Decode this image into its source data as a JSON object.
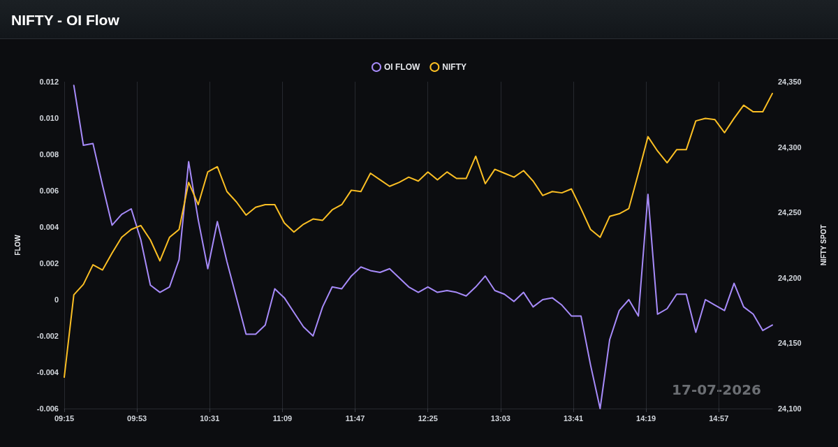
{
  "chart_data": {
    "type": "line",
    "title": "NIFTY - OI Flow",
    "ylabel": "FLOW",
    "y2label": "NIFTY SPOT",
    "x": [
      "2026-07-17T09:15",
      "2026-07-17T09:20",
      "2026-07-17T09:25",
      "2026-07-17T09:30",
      "2026-07-17T09:35",
      "2026-07-17T09:40",
      "2026-07-17T09:45",
      "2026-07-17T09:50",
      "2026-07-17T09:55",
      "2026-07-17T10:00",
      "2026-07-17T10:05",
      "2026-07-17T10:10",
      "2026-07-17T10:15",
      "2026-07-17T10:20",
      "2026-07-17T10:25",
      "2026-07-17T10:30",
      "2026-07-17T10:35",
      "2026-07-17T10:40",
      "2026-07-17T10:45",
      "2026-07-17T10:50",
      "2026-07-17T10:55",
      "2026-07-17T11:00",
      "2026-07-17T11:05",
      "2026-07-17T11:10",
      "2026-07-17T11:15",
      "2026-07-17T11:20",
      "2026-07-17T11:25",
      "2026-07-17T11:30",
      "2026-07-17T11:35",
      "2026-07-17T11:40",
      "2026-07-17T11:45",
      "2026-07-17T11:50",
      "2026-07-17T11:55",
      "2026-07-17T12:00",
      "2026-07-17T12:05",
      "2026-07-17T12:10",
      "2026-07-17T12:15",
      "2026-07-17T12:20",
      "2026-07-17T12:25",
      "2026-07-17T12:30",
      "2026-07-17T12:35",
      "2026-07-17T12:40",
      "2026-07-17T12:45",
      "2026-07-17T12:50",
      "2026-07-17T12:55",
      "2026-07-17T13:00",
      "2026-07-17T13:05",
      "2026-07-17T13:10",
      "2026-07-17T13:15",
      "2026-07-17T13:20",
      "2026-07-17T13:25",
      "2026-07-17T13:30",
      "2026-07-17T13:35",
      "2026-07-17T13:40",
      "2026-07-17T13:45",
      "2026-07-17T13:50",
      "2026-07-17T13:55",
      "2026-07-17T14:00",
      "2026-07-17T14:05",
      "2026-07-17T14:10",
      "2026-07-17T14:15",
      "2026-07-17T14:20",
      "2026-07-17T14:25",
      "2026-07-17T14:30",
      "2026-07-17T14:35",
      "2026-07-17T14:40",
      "2026-07-17T14:45",
      "2026-07-17T14:50",
      "2026-07-17T14:55",
      "2026-07-17T15:00",
      "2026-07-17T15:05",
      "2026-07-17T15:10",
      "2026-07-17T15:15",
      "2026-07-17T15:20",
      "2026-07-17T15:25"
    ],
    "series": [
      {
        "name": "OI FLOW",
        "color": "#a78bfa",
        "values": [
          null,
          0.0118,
          0.0085,
          0.0086,
          0.0063,
          0.0041,
          0.0047,
          0.005,
          0.0033,
          0.0008,
          0.0004,
          0.0007,
          0.0022,
          0.0076,
          0.0044,
          0.0017,
          0.0043,
          0.0021,
          0.0001,
          -0.0019,
          -0.0019,
          -0.0014,
          0.0006,
          0.0001,
          -0.0007,
          -0.0015,
          -0.002,
          -0.0004,
          0.0007,
          0.0006,
          0.0013,
          0.0018,
          0.0016,
          0.0015,
          0.0017,
          0.0012,
          0.0007,
          0.0004,
          0.0007,
          0.0004,
          0.0005,
          0.0004,
          0.0002,
          0.0007,
          0.0013,
          0.0005,
          0.0003,
          -0.0001,
          0.0004,
          -0.0004,
          0,
          0.0001,
          -0.0003,
          -0.0009,
          -0.0009,
          -0.0036,
          -0.006,
          -0.0022,
          -0.0006,
          0,
          -0.0009,
          0.0058,
          -0.0008,
          -0.0005,
          0.0003,
          0.0003,
          -0.0018,
          0,
          -0.0003,
          -0.0006,
          0.0009,
          -0.0004,
          -0.0008,
          -0.0017,
          -0.0014
        ]
      },
      {
        "name": "NIFTY",
        "color": "#fbbf24",
        "axis": "y2",
        "values": [
          24124,
          24187,
          24195,
          24210,
          24206,
          24219,
          24231,
          24237,
          24240,
          24229,
          24213,
          24231,
          24237,
          24273,
          24256,
          24281,
          24285,
          24266,
          24258,
          24248,
          24254,
          24256,
          24256,
          24242,
          24235,
          24241,
          24245,
          24244,
          24252,
          24256,
          24267,
          24266,
          24280,
          24275,
          24270,
          24273,
          24277,
          24274,
          24281,
          24275,
          24281,
          24276,
          24276,
          24293,
          24272,
          24283,
          24280,
          24277,
          24282,
          24274,
          24263,
          24266,
          24265,
          24268,
          24253,
          24237,
          24231,
          24247,
          24249,
          24253,
          24280,
          24308,
          24297,
          24288,
          24298,
          24298,
          24320,
          24322,
          24321,
          24311,
          24322,
          24332,
          24327,
          24327,
          24341
        ]
      }
    ],
    "xticks": [
      {
        "value": "2026-07-17T09:15",
        "label": "09:15"
      },
      {
        "value": "2026-07-17T09:53",
        "label": "09:53"
      },
      {
        "value": "2026-07-17T10:31",
        "label": "10:31"
      },
      {
        "value": "2026-07-17T11:09",
        "label": "11:09"
      },
      {
        "value": "2026-07-17T11:47",
        "label": "11:47"
      },
      {
        "value": "2026-07-17T12:25",
        "label": "12:25"
      },
      {
        "value": "2026-07-17T13:03",
        "label": "13:03"
      },
      {
        "value": "2026-07-17T13:41",
        "label": "13:41"
      },
      {
        "value": "2026-07-17T14:19",
        "label": "14:19"
      },
      {
        "value": "2026-07-17T14:57",
        "label": "14:57"
      }
    ],
    "xlim": [
      "2026-07-17T09:15",
      "2026-07-17T15:25"
    ],
    "ylim": [
      -0.006,
      0.012
    ],
    "yticks": [
      -0.006,
      -0.004,
      -0.002,
      0,
      0.002,
      0.004,
      0.006,
      0.008,
      {
        "value": 0.01,
        "label": "0.010"
      },
      0.012
    ],
    "y2lim": [
      24100,
      24350
    ],
    "y2ticks": [
      {
        "value": 24100,
        "label": "24,100"
      },
      {
        "value": 24150,
        "label": "24,150"
      },
      {
        "value": 24200,
        "label": "24,200"
      },
      {
        "value": 24250,
        "label": "24,250"
      },
      {
        "value": 24300,
        "label": "24,300"
      },
      {
        "value": 24350,
        "label": "24,350"
      }
    ],
    "annotations": [
      "17-07-2026"
    ],
    "grid": "x",
    "legend": "top",
    "marker": "none",
    "line_style": "solid"
  }
}
